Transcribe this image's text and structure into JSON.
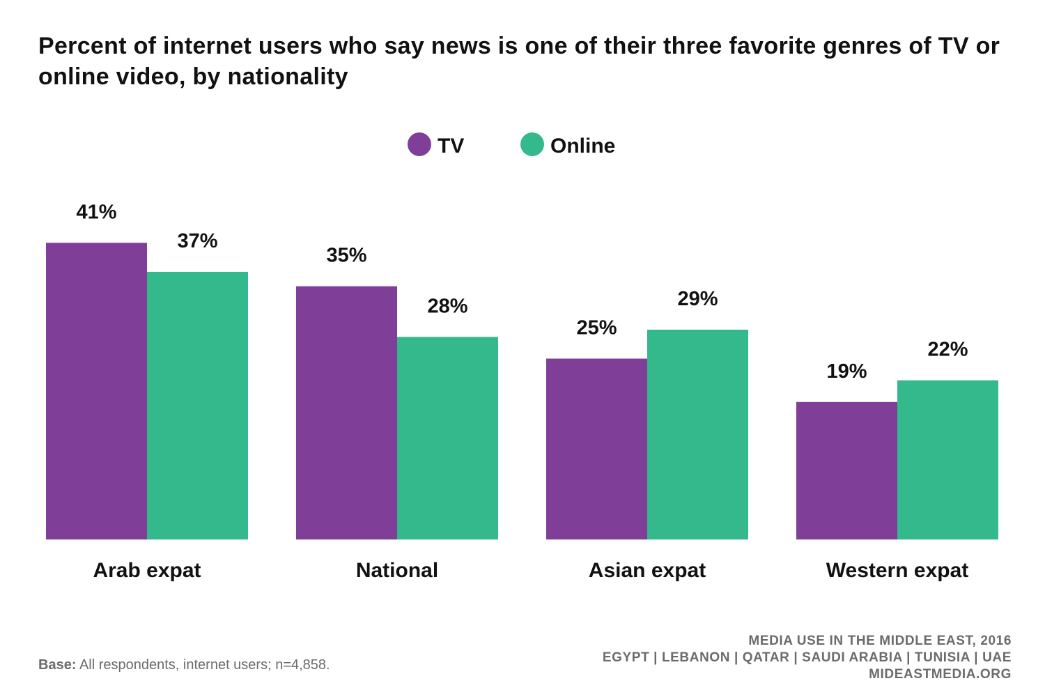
{
  "chart_data": {
    "type": "bar",
    "title": "Percent of internet users who say news is one of their three favorite genres of TV or online video, by nationality",
    "categories": [
      "Arab expat",
      "National",
      "Asian expat",
      "Western expat"
    ],
    "series": [
      {
        "name": "TV",
        "color": "#7f3f98",
        "values": [
          41,
          35,
          25,
          19
        ],
        "labels": [
          "41%",
          "35%",
          "25%",
          "19%"
        ]
      },
      {
        "name": "Online",
        "color": "#33b98c",
        "values": [
          37,
          28,
          29,
          22
        ],
        "labels": [
          "37%",
          "28%",
          "29%",
          "22%"
        ]
      }
    ],
    "ylim": [
      0,
      100
    ],
    "grid": false,
    "legend": "top-center",
    "xlabel": "",
    "ylabel": ""
  },
  "footer": {
    "base_label": "Base:",
    "base_text": "All respondents, internet users; n=4,858.",
    "source_line1": "MEDIA USE IN THE MIDDLE EAST, 2016",
    "source_line2": "EGYPT | LEBANON | QATAR | SAUDI ARABIA | TUNISIA | UAE",
    "source_line3": "MIDEASTMEDIA.ORG"
  }
}
